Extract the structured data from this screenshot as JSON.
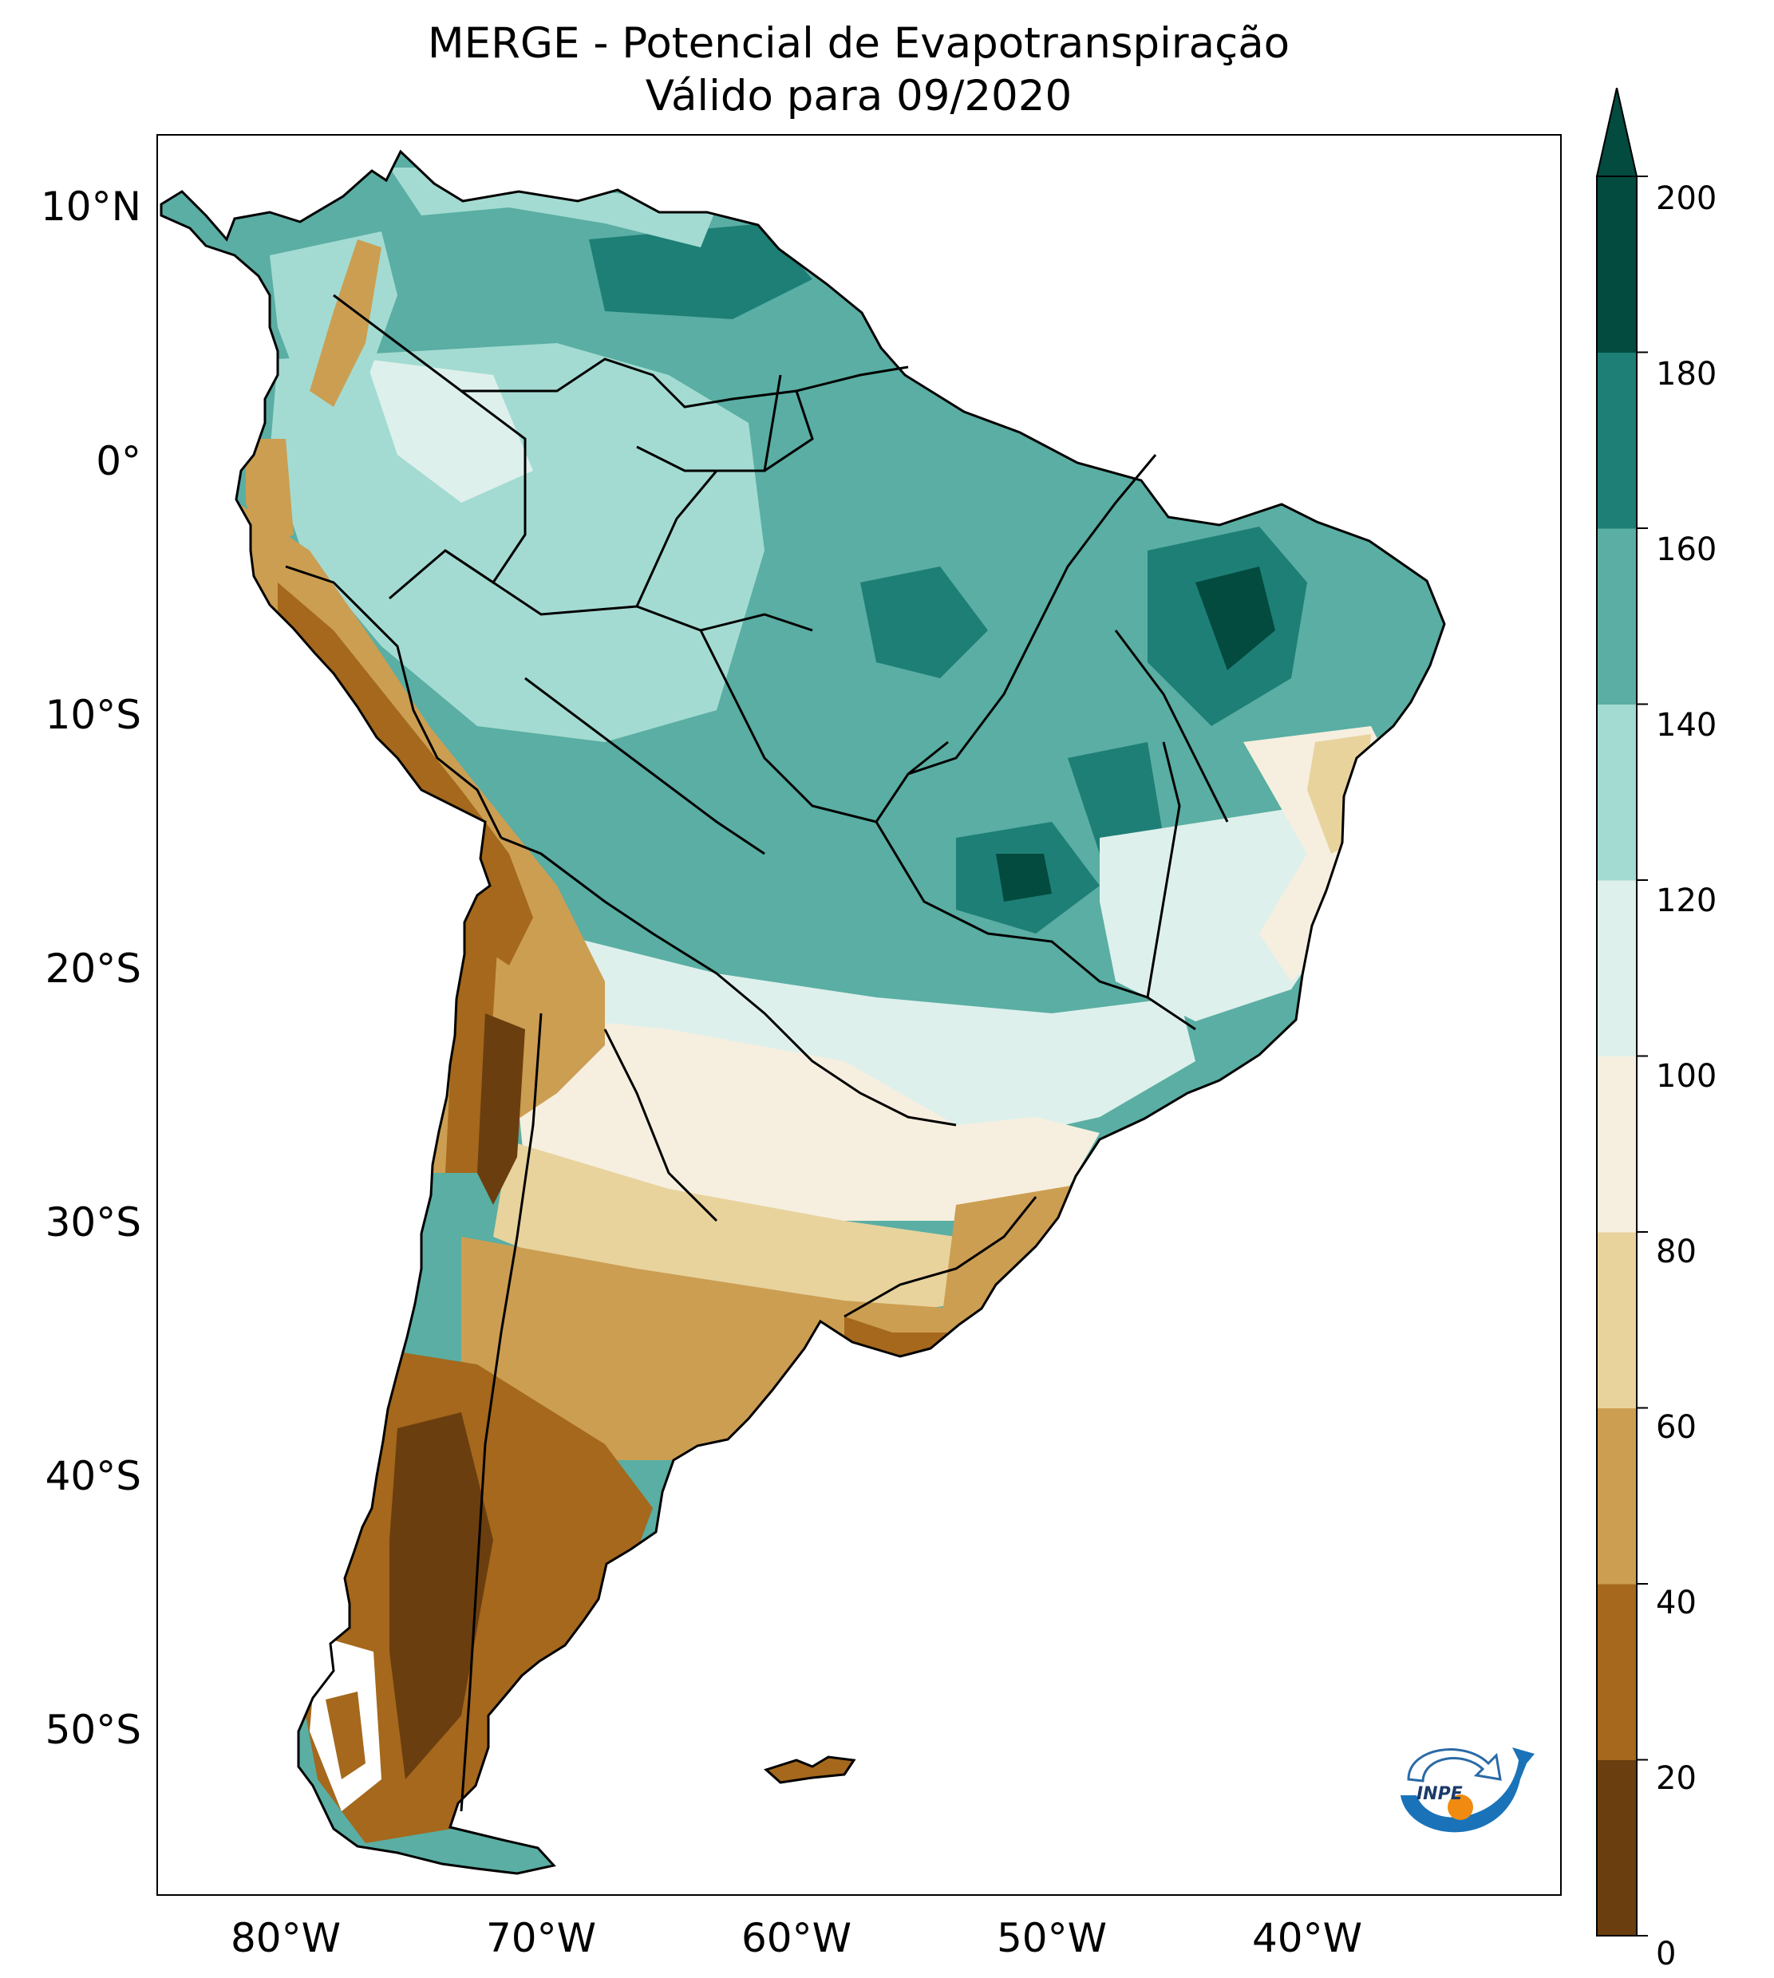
{
  "title": {
    "line1": "MERGE - Potencial de Evapotranspiração",
    "line2": "Válido para 09/2020"
  },
  "axes": {
    "lat_labels": [
      "10°N",
      "0°",
      "10°S",
      "20°S",
      "30°S",
      "40°S",
      "50°S"
    ],
    "lon_labels": [
      "80°W",
      "70°W",
      "60°W",
      "50°W",
      "40°W"
    ]
  },
  "colorbar": {
    "ticks": [
      "0",
      "20",
      "40",
      "60",
      "80",
      "100",
      "120",
      "140",
      "160",
      "180",
      "200"
    ],
    "colors": [
      "#6b3e0f",
      "#a5681c",
      "#cc9e52",
      "#e8d39d",
      "#f6efdf",
      "#def0ec",
      "#a3dbd2",
      "#5aaea3",
      "#1e7f76",
      "#034a3f"
    ],
    "extend": "max"
  },
  "logo": {
    "text": "INPE",
    "icon": "inpe-logo-icon"
  },
  "map": {
    "variable": "Potencial de Evapotranspiração",
    "region": "South America",
    "lat_range": [
      -56,
      12.5
    ],
    "lon_range": [
      -85,
      -30
    ]
  }
}
